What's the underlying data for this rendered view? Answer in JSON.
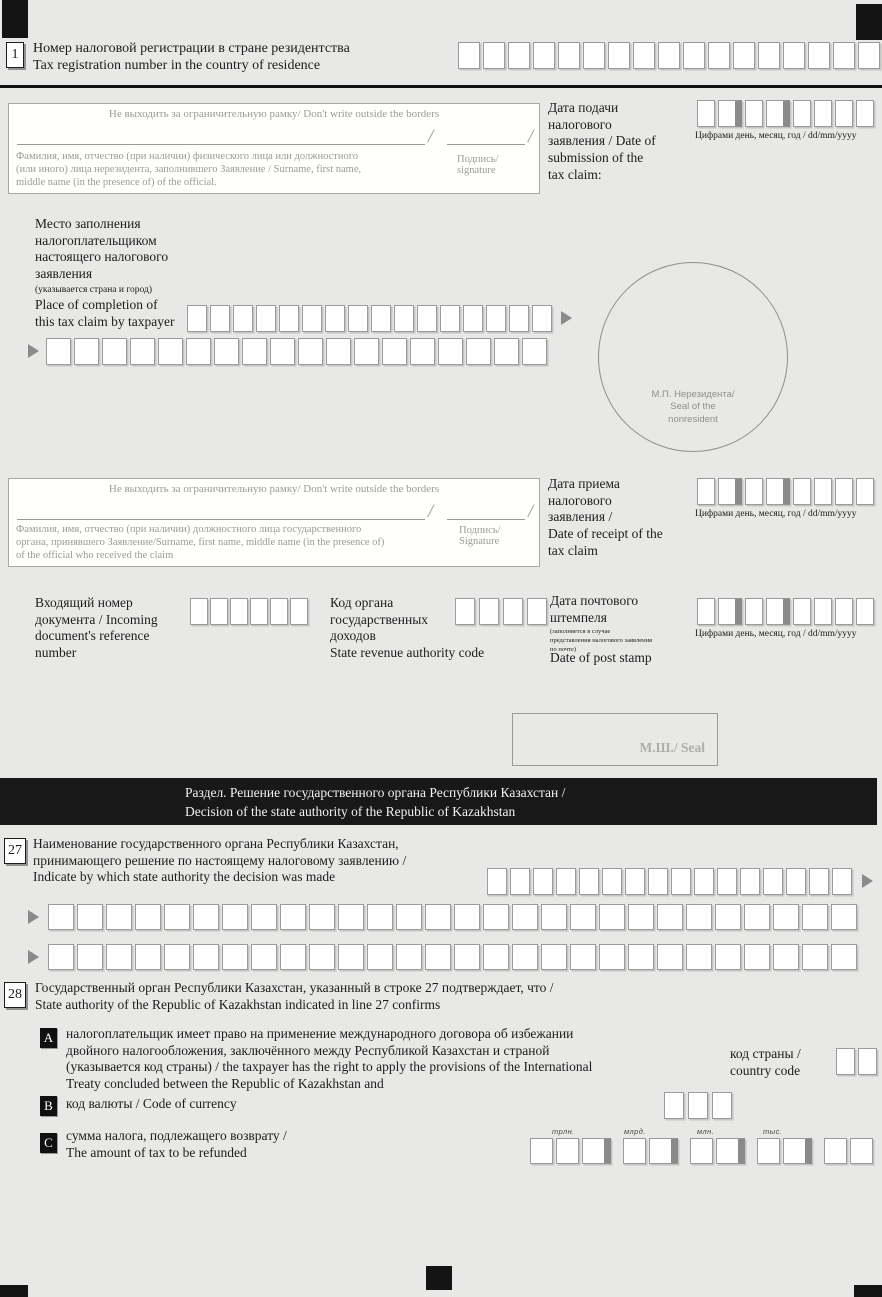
{
  "line1": {
    "num": "1",
    "label": "Номер налоговой регистрации в стране резидентства\nTax registration number in the country of residence"
  },
  "border_note": "Не выходить за ограничительную рамку/ Don't write outside the borders",
  "slash": "/",
  "sig_taxpayer": {
    "desc": "Фамилия, имя, отчество (при наличии) физического лица или должностного\n(или иного) лица нерезидента, заполнившего Заявление / Surname, first name,\nmiddle name  (in the presence of) of the official.",
    "sign": "Подпись/ signature"
  },
  "date_submission": {
    "label": "Дата подачи\nналогового\nзаявления / Date of\nsubmission of the\ntax claim:",
    "caption": "Цифрами день, месяц, год / dd/mm/yyyy"
  },
  "place": {
    "ru": "Место заполнения\nналогоплательщиком\nнастоящего налогового\nзаявления",
    "note": "(указывается страна и город)",
    "en": "Place of completion of\nthis tax claim by taxpayer"
  },
  "seal_nonresident": "М.П. Нерезидента/\nSeal of the\nnonresident",
  "sig_official": {
    "desc": "Фамилия, имя, отчество (при наличии) должностного лица государственного\nоргана, принявшего Заявление/Surname, first name, middle name  (in the presence of)\n of the official who received the claim",
    "sign": "Подпись/\nSignature"
  },
  "date_receipt": {
    "label": "Дата приема\nналогового\nзаявления /\nDate of receipt of the\ntax claim",
    "caption": "Цифрами день, месяц, год / dd/mm/yyyy"
  },
  "incoming": {
    "label": "Входящий номер\nдокумента / Incoming\ndocument's reference\nnumber"
  },
  "revenue_code": {
    "label": "Код органа\nгосударственных\nдоходов\nState revenue authority code"
  },
  "post_stamp": {
    "title": "Дата почтового\nштемпеля",
    "note": "(заполняется в случае\nпредставления налогового заявления\nпо почте)",
    "en": "Date of post stamp",
    "caption": "Цифрами день, месяц, год / dd/mm/yyyy"
  },
  "seal_box": "М.Ш./ Seal",
  "section_header": "Раздел. Решение государственного органа Республики Казахстан /\nDecision of the state authority of the Republic of Kazakhstan",
  "line27": {
    "num": "27",
    "label": "Наименование государственного органа Республики Казахстан,\nпринимающего решение по настоящему налоговому заявлению /\nIndicate by which state authority the decision was made"
  },
  "line28": {
    "num": "28",
    "label": "Государственный орган Республики Казахстан, указанный в строке 27 подтверждает, что /\nState authority of the Republic of Kazakhstan indicated in line 27 confirms"
  },
  "itemA": {
    "letter": "A",
    "label": "налогоплательщик имеет право на применение международного договора об избежании\nдвойного налогообложения, заключённого между Республикой Казахстан и страной\n(указывается код страны) / the taxpayer has the right to apply the provisions of the International\nTreaty concluded between the Republic of Kazakhstan and",
    "country_label": "код страны /\ncountry code"
  },
  "itemB": {
    "letter": "B",
    "label": "код валюты / Code of currency"
  },
  "itemC": {
    "letter": "C",
    "label": "сумма налога, подлежащего возврату /\nThe amount of tax to be refunded",
    "scales": [
      "трлн.",
      "млрд.",
      "млн.",
      "тыс."
    ]
  },
  "colors": {
    "page_bg": "#e8e8e6",
    "header_bar_bg": "#181818",
    "cell_border": "#9b9b9b",
    "group_separator": "#8a8a8a",
    "muted_text": "#9a9a98"
  }
}
